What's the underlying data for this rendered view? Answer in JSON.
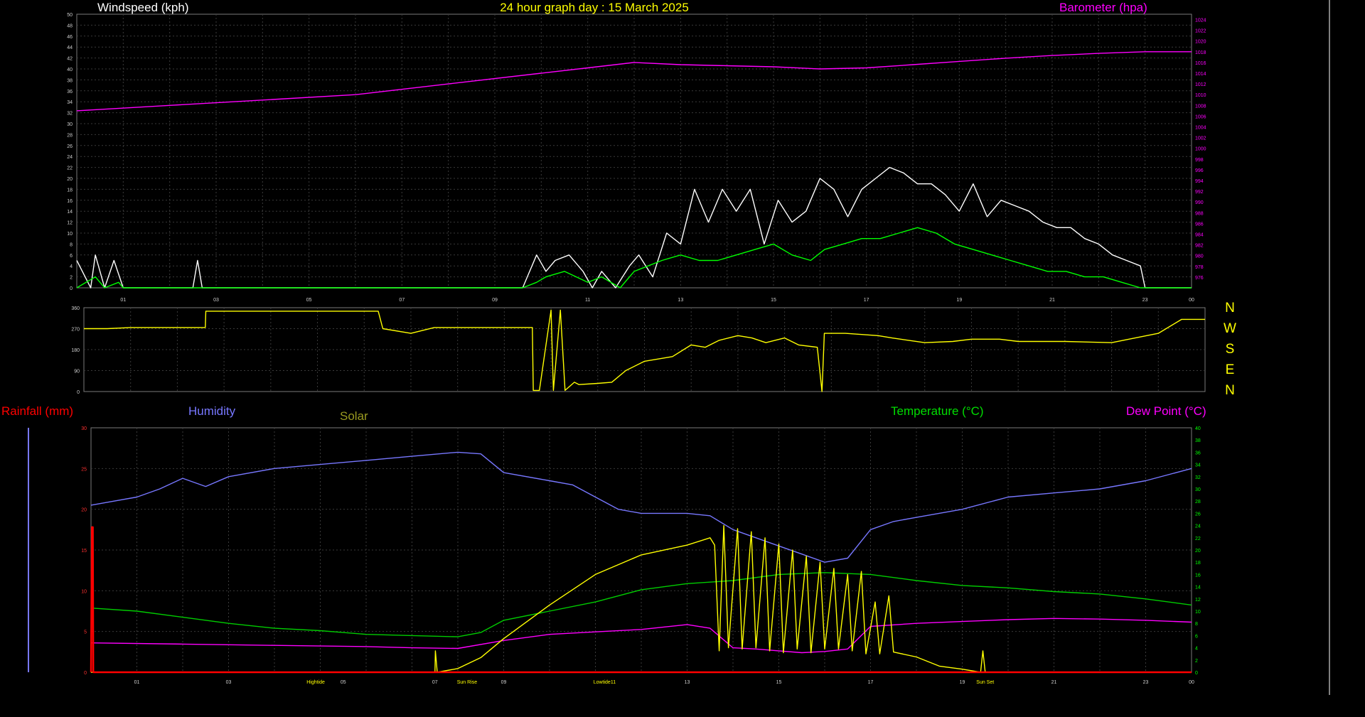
{
  "title": "24 hour graph day : 15 March 2025",
  "colors": {
    "background": "#000000",
    "grid": "#3a3a3a",
    "axis": "#9a9a9a",
    "windspeed": "#ffffff",
    "wind_avg": "#00ff00",
    "barometer": "#ff00ff",
    "direction": "#ffff00",
    "rainfall": "#ff0000",
    "humidity": "#7777ff",
    "solar": "#ffff00",
    "temperature": "#00cc00",
    "dewpoint": "#ff00ff",
    "title": "#ffff00"
  },
  "compass_labels": [
    "N",
    "W",
    "S",
    "E",
    "N"
  ],
  "chart_data": [
    {
      "type": "line",
      "name": "wind-barometer",
      "labels": {
        "windspeed": "Windspeed (kph)",
        "barometer": "Barometer (hpa)"
      },
      "x_ticks": [
        "01",
        "03",
        "05",
        "07",
        "09",
        "11",
        "13",
        "15",
        "17",
        "19",
        "21",
        "23",
        "00"
      ],
      "xlim": [
        0,
        24
      ],
      "y_left": {
        "range": [
          0,
          50
        ],
        "ticks": [
          0,
          2,
          4,
          6,
          8,
          10,
          12,
          14,
          16,
          18,
          20,
          22,
          24,
          26,
          28,
          30,
          32,
          34,
          36,
          38,
          40,
          42,
          44,
          46,
          48,
          50
        ]
      },
      "y_right": {
        "range": [
          974,
          1025
        ],
        "ticks": [
          976,
          978,
          980,
          982,
          984,
          986,
          988,
          990,
          992,
          994,
          996,
          998,
          1000,
          1002,
          1004,
          1006,
          1008,
          1010,
          1012,
          1014,
          1016,
          1018,
          1020,
          1022,
          1024
        ]
      },
      "series": [
        {
          "name": "Windspeed (kph)",
          "axis": "left",
          "x": [
            0,
            0.3,
            0.4,
            0.6,
            0.8,
            1,
            1.2,
            2.5,
            2.6,
            2.7,
            3,
            5,
            8,
            9.6,
            9.7,
            9.9,
            10.1,
            10.3,
            10.6,
            10.9,
            11.1,
            11.3,
            11.6,
            11.9,
            12.1,
            12.4,
            12.7,
            13,
            13.3,
            13.6,
            13.9,
            14.2,
            14.5,
            14.8,
            15.1,
            15.4,
            15.7,
            16,
            16.3,
            16.6,
            16.9,
            17.2,
            17.5,
            17.8,
            18.1,
            18.4,
            18.7,
            19,
            19.3,
            19.6,
            19.9,
            20.2,
            20.5,
            20.8,
            21.1,
            21.4,
            21.7,
            22,
            22.3,
            22.6,
            22.9,
            23,
            24
          ],
          "y": [
            5,
            0,
            6,
            0,
            5,
            0,
            0,
            0,
            5,
            0,
            0,
            0,
            0,
            0,
            2,
            6,
            3,
            5,
            6,
            3,
            0,
            3,
            0,
            4,
            6,
            2,
            10,
            8,
            18,
            12,
            18,
            14,
            18,
            8,
            16,
            12,
            14,
            20,
            18,
            13,
            18,
            20,
            22,
            21,
            19,
            19,
            17,
            14,
            19,
            13,
            16,
            15,
            14,
            12,
            11,
            11,
            9,
            8,
            6,
            5,
            4,
            0,
            0
          ]
        },
        {
          "name": "Wind average",
          "axis": "left",
          "x": [
            0,
            0.4,
            0.6,
            0.9,
            1,
            1.3,
            2,
            9.6,
            9.9,
            10.1,
            10.5,
            11,
            11.3,
            11.7,
            12,
            12.3,
            12.6,
            13,
            13.4,
            13.8,
            14.2,
            14.6,
            15,
            15.4,
            15.8,
            16.1,
            16.5,
            16.9,
            17.3,
            17.7,
            18.1,
            18.5,
            18.9,
            19.3,
            19.7,
            20.1,
            20.5,
            20.9,
            21.3,
            21.7,
            22.1,
            22.5,
            22.9,
            23.2,
            24
          ],
          "y": [
            0,
            2,
            0,
            1,
            0,
            0,
            0,
            0,
            1,
            2,
            3,
            1,
            2,
            0,
            3,
            4,
            5,
            6,
            5,
            5,
            6,
            7,
            8,
            6,
            5,
            7,
            8,
            9,
            9,
            10,
            11,
            10,
            8,
            7,
            6,
            5,
            4,
            3,
            3,
            2,
            2,
            1,
            0,
            0,
            0
          ]
        },
        {
          "name": "Barometer (hpa)",
          "axis": "right",
          "x": [
            0,
            2,
            4,
            6,
            8,
            10,
            11,
            12,
            13,
            14,
            15,
            16,
            17,
            18,
            19,
            20,
            21,
            22,
            23,
            24
          ],
          "y": [
            1007,
            1008,
            1009,
            1010,
            1012,
            1014,
            1015,
            1016,
            1015.6,
            1015.4,
            1015.2,
            1014.8,
            1015,
            1015.6,
            1016.2,
            1016.8,
            1017.3,
            1017.7,
            1018,
            1018
          ]
        }
      ]
    },
    {
      "type": "line",
      "name": "wind-direction",
      "x_ticks": [],
      "xlim": [
        0,
        24
      ],
      "y_left": {
        "range": [
          0,
          360
        ],
        "ticks": [
          0,
          90,
          180,
          270,
          360
        ]
      },
      "series": [
        {
          "name": "Wind direction",
          "axis": "left",
          "x": [
            0,
            0.5,
            1,
            2,
            2.6,
            2.61,
            4,
            6.3,
            6.4,
            7,
            7.5,
            9,
            9.6,
            9.62,
            9.75,
            10,
            10.05,
            10.2,
            10.3,
            10.5,
            10.6,
            11,
            11.3,
            11.6,
            12,
            12.6,
            13,
            13.3,
            13.6,
            14,
            14.3,
            14.6,
            15,
            15.3,
            15.7,
            15.8,
            15.85,
            16.3,
            17,
            17.3,
            18,
            18.6,
            19,
            19.6,
            20,
            21,
            22,
            23,
            23.5,
            24
          ],
          "y": [
            270,
            270,
            275,
            275,
            275,
            345,
            345,
            345,
            270,
            250,
            275,
            275,
            275,
            5,
            5,
            350,
            5,
            350,
            5,
            40,
            30,
            35,
            40,
            90,
            130,
            150,
            200,
            190,
            220,
            240,
            230,
            210,
            230,
            200,
            190,
            0,
            250,
            250,
            240,
            230,
            210,
            215,
            225,
            225,
            215,
            215,
            210,
            250,
            310,
            310
          ]
        }
      ]
    },
    {
      "type": "line",
      "name": "temperature-humidity",
      "labels": {
        "rainfall": "Rainfall (mm)",
        "humidity": "Humidity",
        "solar": "Solar",
        "temperature": "Temperature (°C)",
        "dewpoint": "Dew Point (°C)"
      },
      "x_ticks": [
        "01",
        "03",
        "Hightide",
        "05",
        "07",
        "Sun Rise",
        "09",
        "Lowtide11",
        "13",
        "15",
        "17",
        "19",
        "Sun Set",
        "21",
        "23",
        "00"
      ],
      "xlim": [
        0,
        24
      ],
      "y_left": {
        "range": [
          0,
          30
        ],
        "ticks": [
          0,
          5,
          10,
          15,
          20,
          25,
          30
        ]
      },
      "y_right": {
        "range": [
          0,
          40
        ],
        "ticks": [
          0,
          2,
          4,
          6,
          8,
          10,
          12,
          14,
          16,
          18,
          20,
          22,
          24,
          26,
          28,
          30,
          32,
          34,
          36,
          38,
          40
        ]
      },
      "series": [
        {
          "name": "Humidity",
          "axis": "left",
          "x": [
            0,
            0.5,
            1,
            1.5,
            2,
            2.5,
            3,
            4,
            5,
            6,
            7,
            8,
            8.5,
            9,
            10,
            10.5,
            11,
            11.5,
            12,
            12.5,
            13,
            13.5,
            14,
            14.5,
            15,
            15.5,
            16,
            16.5,
            17,
            17.5,
            18,
            19,
            20,
            21,
            22,
            23,
            24
          ],
          "y": [
            20.5,
            21,
            21.5,
            22.5,
            23.8,
            22.8,
            24,
            25,
            25.5,
            26,
            26.5,
            27,
            26.8,
            24.5,
            23.5,
            23,
            21.5,
            20,
            19.5,
            19.5,
            19.5,
            19.2,
            17.5,
            16.5,
            15.5,
            14.5,
            13.5,
            14,
            17.5,
            18.5,
            19,
            20,
            21.5,
            22,
            22.5,
            23.5,
            25
          ]
        },
        {
          "name": "Temperature (°C)",
          "axis": "right",
          "x": [
            0,
            1,
            2,
            3,
            4,
            5,
            6,
            7,
            8,
            8.5,
            9,
            10,
            11,
            12,
            13,
            14,
            15,
            16,
            17,
            18,
            19,
            20,
            21,
            22,
            23,
            24
          ],
          "y": [
            10.5,
            10,
            9,
            8,
            7.2,
            6.8,
            6.2,
            6,
            5.8,
            6.5,
            8.5,
            10,
            11.5,
            13.5,
            14.5,
            15,
            16,
            16.3,
            16,
            15,
            14.2,
            13.8,
            13.2,
            12.8,
            12,
            11
          ]
        },
        {
          "name": "Dew Point (°C)",
          "axis": "right",
          "x": [
            0,
            2,
            4,
            6,
            7,
            8,
            9,
            10,
            11,
            12,
            13,
            13.5,
            14,
            14.5,
            15,
            15.5,
            16,
            16.5,
            17,
            18,
            19,
            20,
            21,
            22,
            23,
            24
          ],
          "y": [
            4.8,
            4.6,
            4.4,
            4.2,
            4,
            3.9,
            5.2,
            6.2,
            6.6,
            7,
            7.8,
            7.2,
            4,
            3.8,
            3.5,
            3.2,
            3.4,
            3.8,
            7.5,
            8,
            8.3,
            8.6,
            8.8,
            8.7,
            8.5,
            8.2
          ]
        },
        {
          "name": "Solar",
          "axis": "right",
          "x": [
            0,
            7.5,
            7.51,
            7.55,
            8,
            8.5,
            9,
            10,
            11,
            12,
            13,
            13.5,
            13.6,
            13.7,
            13.8,
            13.9,
            14.1,
            14.2,
            14.4,
            14.5,
            14.7,
            14.8,
            15,
            15.1,
            15.3,
            15.4,
            15.6,
            15.7,
            15.9,
            16,
            16.2,
            16.3,
            16.5,
            16.6,
            16.8,
            16.9,
            17.1,
            17.2,
            17.4,
            17.5,
            18,
            18.5,
            19,
            19.4,
            19.45,
            19.5,
            24
          ],
          "y": [
            0,
            0,
            3.5,
            0,
            0.6,
            2.4,
            5.5,
            11,
            16,
            19.2,
            20.8,
            22,
            20.8,
            3.5,
            24,
            4,
            23.5,
            3.8,
            23,
            4,
            22,
            3.5,
            21,
            3.2,
            20,
            3.8,
            19,
            3.2,
            18,
            3.8,
            17,
            3.8,
            16,
            3.5,
            16.5,
            3,
            11.5,
            3,
            12.5,
            3.3,
            2.5,
            1,
            0.5,
            0,
            3.5,
            0,
            0
          ]
        },
        {
          "name": "Rainfall (mm)",
          "axis": "left",
          "x": [
            0,
            0.02,
            0.04,
            0.05,
            24
          ],
          "y": [
            0,
            17.8,
            17.8,
            0,
            0
          ]
        }
      ]
    }
  ]
}
